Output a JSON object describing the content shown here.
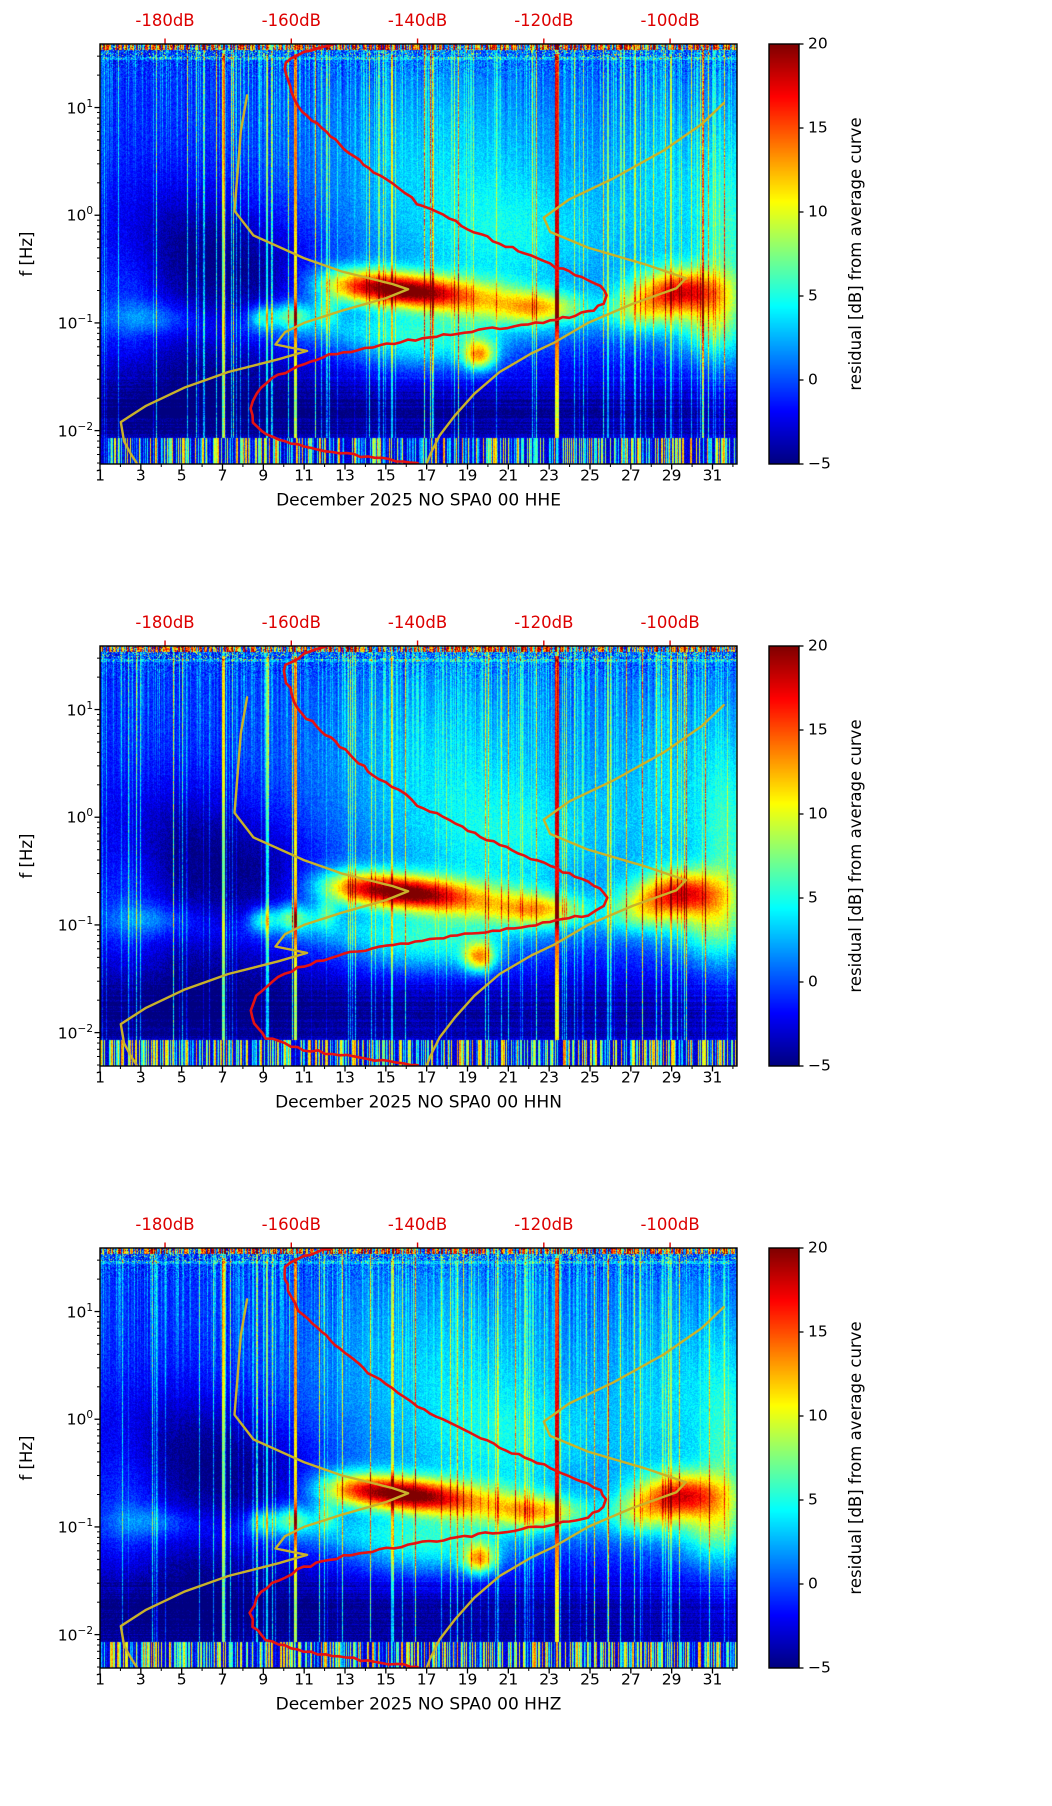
{
  "figure": {
    "background": "#ffffff"
  },
  "chart_data": {
    "type": "heatmap",
    "description": "Probabilistic power spectral density residual spectrograms (3 seismometer components) with median PSD curve and Peterson noise model curves",
    "panels": [
      {
        "xlabel": "December 2025 NO SPA0 00 HHE",
        "seed": 1
      },
      {
        "xlabel": "December 2025 NO SPA0 00 HHN",
        "seed": 2
      },
      {
        "xlabel": "December 2025 NO SPA0 00 HHZ",
        "seed": 3
      }
    ],
    "x_axis": {
      "range": [
        1,
        32.2
      ],
      "major_ticks": [
        1,
        3,
        5,
        7,
        9,
        11,
        13,
        15,
        17,
        19,
        21,
        23,
        25,
        27,
        29,
        31
      ],
      "tick_labels": [
        "1",
        "3",
        "5",
        "7",
        "9",
        "11",
        "13",
        "15",
        "17",
        "19",
        "21",
        "23",
        "25",
        "27",
        "29",
        "31"
      ],
      "minor_ticks": [
        2,
        4,
        6,
        8,
        10,
        12,
        14,
        16,
        18,
        20,
        22,
        24,
        26,
        28,
        30,
        32
      ]
    },
    "y_axis": {
      "label": "f [Hz]",
      "log_range": [
        -2.31,
        1.59
      ],
      "major_ticks": [
        10,
        1,
        0.1,
        0.01
      ],
      "tick_exponents": [
        "1",
        "0",
        "−1",
        "−2"
      ]
    },
    "top_axis": {
      "range": [
        -190.3,
        -89.4
      ],
      "ticks": [
        -180,
        -160,
        -140,
        -120,
        -100
      ],
      "tick_labels": [
        "-180dB",
        "-160dB",
        "-140dB",
        "-120dB",
        "-100dB"
      ],
      "color": "#dd0000"
    },
    "colorbar": {
      "label": "residual [dB] from average curve",
      "range": [
        -5,
        20
      ],
      "ticks": [
        20,
        15,
        10,
        5,
        0,
        -5
      ],
      "tick_labels": [
        "20",
        "15",
        "10",
        "5",
        "0",
        "−5"
      ]
    },
    "curves": {
      "median": {
        "color": "#e51211",
        "width": 2.6,
        "points": [
          [
            42,
            -152
          ],
          [
            33,
            -158
          ],
          [
            26,
            -161
          ],
          [
            20,
            -161
          ],
          [
            14,
            -160
          ],
          [
            10,
            -159
          ],
          [
            7,
            -156
          ],
          [
            5,
            -153
          ],
          [
            3.5,
            -150
          ],
          [
            2.5,
            -147
          ],
          [
            1.8,
            -143
          ],
          [
            1.3,
            -140
          ],
          [
            1.0,
            -136
          ],
          [
            0.75,
            -132
          ],
          [
            0.55,
            -127
          ],
          [
            0.42,
            -122
          ],
          [
            0.33,
            -118
          ],
          [
            0.27,
            -114
          ],
          [
            0.22,
            -111
          ],
          [
            0.18,
            -110
          ],
          [
            0.15,
            -110.5
          ],
          [
            0.125,
            -113
          ],
          [
            0.105,
            -119
          ],
          [
            0.09,
            -127
          ],
          [
            0.075,
            -137
          ],
          [
            0.062,
            -146
          ],
          [
            0.05,
            -154
          ],
          [
            0.04,
            -159
          ],
          [
            0.03,
            -163
          ],
          [
            0.022,
            -165.5
          ],
          [
            0.016,
            -166.5
          ],
          [
            0.012,
            -166
          ],
          [
            0.009,
            -164
          ],
          [
            0.007,
            -158
          ],
          [
            0.0058,
            -149
          ],
          [
            0.005,
            -140
          ]
        ]
      },
      "nlnm": {
        "color": "#c9b22a",
        "width": 2.4,
        "points": [
          [
            13,
            -167
          ],
          [
            6,
            -168
          ],
          [
            2.5,
            -168.5
          ],
          [
            1.1,
            -169
          ],
          [
            0.65,
            -166
          ],
          [
            0.4,
            -158
          ],
          [
            0.3,
            -152
          ],
          [
            0.23,
            -144
          ],
          [
            0.205,
            -141.5
          ],
          [
            0.17,
            -145
          ],
          [
            0.13,
            -152
          ],
          [
            0.1,
            -158
          ],
          [
            0.082,
            -161
          ],
          [
            0.063,
            -162.5
          ],
          [
            0.055,
            -157.5
          ],
          [
            0.046,
            -162
          ],
          [
            0.035,
            -170
          ],
          [
            0.025,
            -177
          ],
          [
            0.017,
            -183
          ],
          [
            0.012,
            -187
          ],
          [
            0.008,
            -186.5
          ],
          [
            0.0062,
            -185.5
          ],
          [
            0.005,
            -184.5
          ]
        ]
      },
      "nhnm": {
        "color": "#c9b22a",
        "width": 2.4,
        "points": [
          [
            11,
            -91.5
          ],
          [
            7,
            -95
          ],
          [
            4,
            -101
          ],
          [
            2.2,
            -109
          ],
          [
            1.4,
            -116
          ],
          [
            0.95,
            -120
          ],
          [
            0.7,
            -119
          ],
          [
            0.5,
            -113
          ],
          [
            0.35,
            -104
          ],
          [
            0.26,
            -97.5
          ],
          [
            0.21,
            -99
          ],
          [
            0.15,
            -106
          ],
          [
            0.1,
            -113
          ],
          [
            0.065,
            -118.5
          ],
          [
            0.052,
            -122
          ],
          [
            0.035,
            -127
          ],
          [
            0.022,
            -131
          ],
          [
            0.014,
            -134
          ],
          [
            0.009,
            -136.5
          ],
          [
            0.006,
            -138
          ],
          [
            0.005,
            -138.5
          ]
        ]
      }
    },
    "texture": {
      "blobs": [
        {
          "d": 15.8,
          "L": -0.7,
          "sd": 2.0,
          "sL": 0.11,
          "a": 16,
          "slope": -0.015
        },
        {
          "d": 19.5,
          "L": -0.78,
          "sd": 3.0,
          "sL": 0.14,
          "a": 8,
          "slope": -0.02
        },
        {
          "d": 13.2,
          "L": -0.66,
          "sd": 1.3,
          "sL": 0.12,
          "a": 7
        },
        {
          "d": 22.6,
          "L": -0.86,
          "sd": 1.4,
          "sL": 0.1,
          "a": 7
        },
        {
          "d": 29.4,
          "L": -0.7,
          "sd": 1.4,
          "sL": 0.14,
          "a": 13
        },
        {
          "d": 27.6,
          "L": -0.88,
          "sd": 1.2,
          "sL": 0.14,
          "a": 7
        },
        {
          "d": 30.8,
          "L": -0.95,
          "sd": 1.2,
          "sL": 0.25,
          "a": 6
        },
        {
          "d": 18.0,
          "L": 0.45,
          "sd": 4.8,
          "sL": 0.8,
          "a": 4.2
        },
        {
          "d": 29.5,
          "L": 0.15,
          "sd": 2.8,
          "sL": 0.9,
          "a": 4.0
        },
        {
          "d": 21.5,
          "L": -0.25,
          "sd": 3.2,
          "sL": 0.4,
          "a": 3.2
        },
        {
          "d": 4.5,
          "L": -0.3,
          "sd": 3.0,
          "sL": 0.45,
          "a": -3.6
        },
        {
          "d": 9.0,
          "L": -0.5,
          "sd": 2.2,
          "sL": 0.35,
          "a": -2.5
        },
        {
          "d": 16.0,
          "L": -1.85,
          "sd": 40,
          "sL": 0.33,
          "a": -3.4
        },
        {
          "d": 5.0,
          "L": -1.4,
          "sd": 4.5,
          "sL": 0.45,
          "a": -2.2
        },
        {
          "d": 19.6,
          "L": -1.3,
          "sd": 0.55,
          "sL": 0.1,
          "a": 12
        },
        {
          "d": 17.0,
          "L": -1.25,
          "sd": 2.6,
          "sL": 0.16,
          "a": 4.5
        },
        {
          "d": 14.5,
          "L": -1.05,
          "sd": 5.5,
          "sL": 0.12,
          "a": 3.5
        },
        {
          "d": 10.4,
          "L": -0.93,
          "sd": 0.7,
          "sL": 0.09,
          "a": 8
        },
        {
          "d": 8.9,
          "L": -0.95,
          "sd": 0.45,
          "sL": 0.08,
          "a": 6
        },
        {
          "d": 12.1,
          "L": -0.9,
          "sd": 0.4,
          "sL": 0.09,
          "a": 5
        },
        {
          "d": 3.5,
          "L": -0.95,
          "sd": 1.5,
          "sL": 0.1,
          "a": 3
        },
        {
          "d": 2.5,
          "L": -0.75,
          "sd": 1.2,
          "sL": 0.5,
          "a": 2.5
        },
        {
          "d": 31.8,
          "L": -0.4,
          "sd": 0.9,
          "sL": 0.8,
          "a": 4
        }
      ],
      "streaks": [
        {
          "day": 7.05,
          "amp": 12,
          "w": 0.07
        },
        {
          "day": 9.15,
          "amp": 8,
          "w": 0.05
        },
        {
          "day": 10.55,
          "amp": 13,
          "w": 0.07
        },
        {
          "day": 15.3,
          "amp": 7,
          "w": 0.05
        },
        {
          "day": 23.4,
          "amp": 14,
          "w": 0.08
        },
        {
          "day": 25.9,
          "amp": 6,
          "w": 0.05
        },
        {
          "day": 29.0,
          "amp": 5,
          "w": 0.04
        }
      ]
    }
  }
}
